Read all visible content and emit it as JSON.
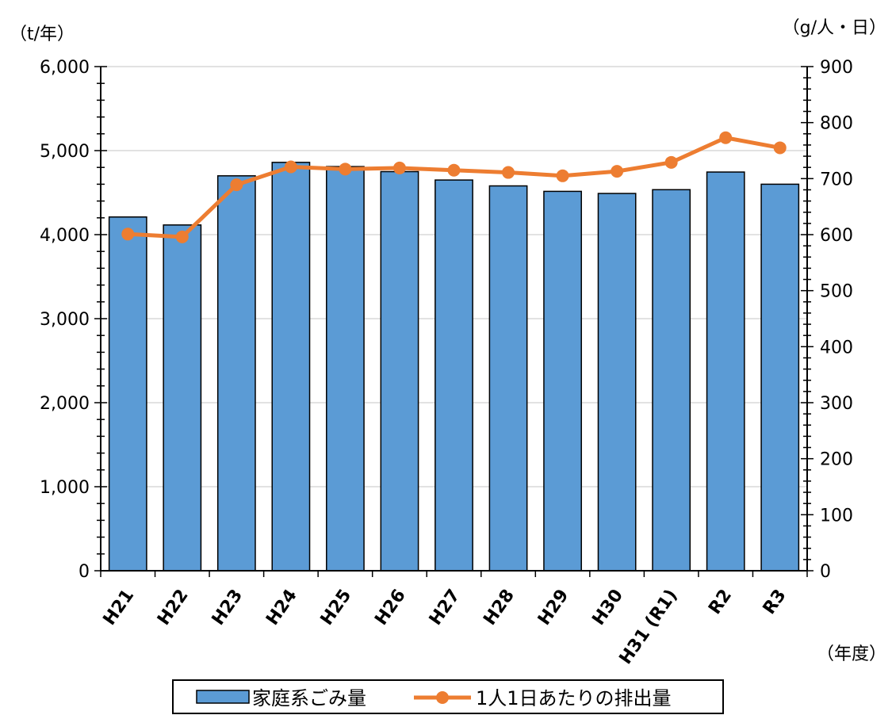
{
  "chart_data": {
    "type": "bar+line",
    "categories": [
      "H21",
      "H22",
      "H23",
      "H24",
      "H25",
      "H26",
      "H27",
      "H28",
      "H29",
      "H30",
      "H31 (R1)",
      "R2",
      "R3"
    ],
    "series": [
      {
        "name": "家庭系ごみ量",
        "kind": "bar",
        "axis": "left",
        "color": "#5b9bd5",
        "values": [
          4210,
          4115,
          4700,
          4860,
          4810,
          4750,
          4650,
          4580,
          4515,
          4490,
          4535,
          4745,
          4600
        ]
      },
      {
        "name": "1人1日あたりの排出量",
        "kind": "line",
        "axis": "right",
        "color": "#ed7d31",
        "values": [
          601,
          596,
          689,
          721,
          717,
          719,
          715,
          711,
          705,
          713,
          729,
          773,
          755
        ]
      }
    ],
    "y_left": {
      "unit_label": "（t/年）",
      "ylim": [
        0,
        6000
      ],
      "tick_labels": [
        "0",
        "1,000",
        "2,000",
        "3,000",
        "4,000",
        "5,000",
        "6,000"
      ]
    },
    "y_right": {
      "unit_label": "（g/人・日）",
      "ylim": [
        0,
        900
      ],
      "tick_labels": [
        "0",
        "100",
        "200",
        "300",
        "400",
        "500",
        "600",
        "700",
        "800",
        "900"
      ]
    },
    "x_unit_label": "（年度）",
    "grid": true,
    "legend_position": "bottom"
  }
}
